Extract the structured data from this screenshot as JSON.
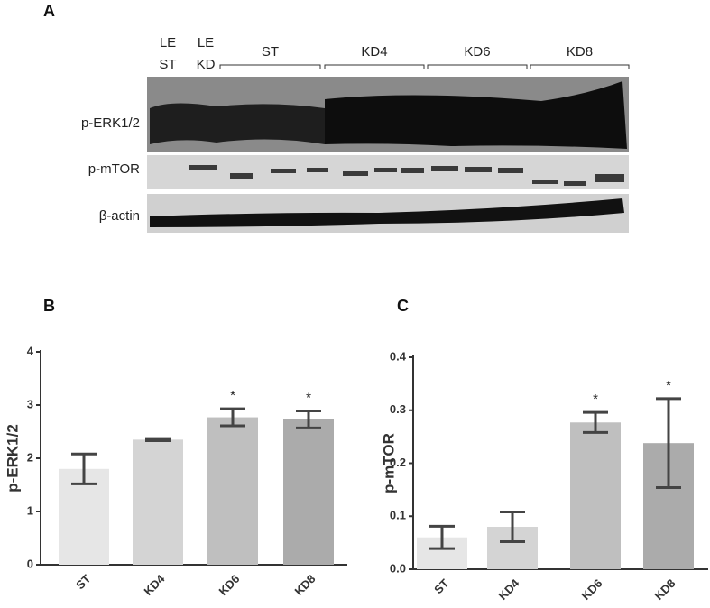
{
  "panels": {
    "a": "A",
    "b": "B",
    "c": "C"
  },
  "blot": {
    "lanes": [
      [
        "LE",
        "ST"
      ],
      [
        "LE",
        "KD"
      ]
    ],
    "groups": [
      "ST",
      "KD4",
      "KD6",
      "KD8"
    ],
    "rows": [
      "p-ERK1/2",
      "p-mTOR",
      "β-actin"
    ]
  },
  "chart_data": [
    {
      "type": "bar",
      "y_label": "p-ERK1/2",
      "categories": [
        "ST",
        "KD4",
        "KD6",
        "KD8"
      ],
      "values": [
        1.8,
        2.35,
        2.77,
        2.73
      ],
      "errors": [
        0.28,
        0.02,
        0.16,
        0.16
      ],
      "significance": [
        null,
        null,
        "*",
        "*"
      ],
      "colors": [
        "#e6e6e6",
        "#d4d4d4",
        "#bfbfbf",
        "#ababab"
      ],
      "ylim": [
        0,
        4
      ],
      "yticks": [
        0,
        1,
        2,
        3,
        4
      ]
    },
    {
      "type": "bar",
      "y_label": "p-mTOR",
      "categories": [
        "ST",
        "KD4",
        "KD6",
        "KD8"
      ],
      "values": [
        0.06,
        0.08,
        0.277,
        0.238
      ],
      "errors": [
        0.021,
        0.028,
        0.019,
        0.084
      ],
      "significance": [
        null,
        null,
        "*",
        "*"
      ],
      "colors": [
        "#e6e6e6",
        "#d4d4d4",
        "#bfbfbf",
        "#ababab"
      ],
      "ylim": [
        0,
        0.4
      ],
      "yticks": [
        {
          "value": 0,
          "label": "0.0"
        },
        0.1,
        0.2,
        0.3,
        0.4
      ]
    }
  ]
}
